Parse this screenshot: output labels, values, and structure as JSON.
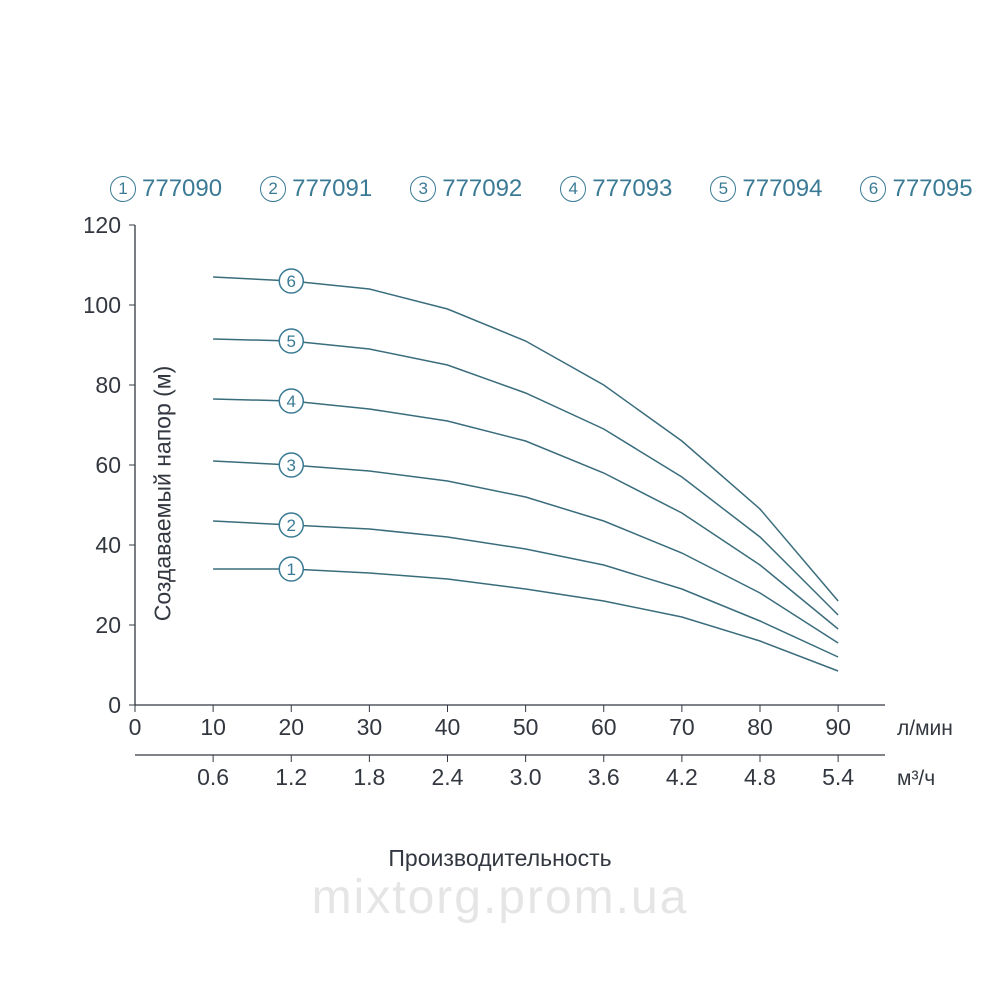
{
  "chart": {
    "type": "line",
    "title": "",
    "ylabel": "Создаваемый напор (м)",
    "xlabel": "Производительность",
    "x_unit_1": "л/мин",
    "x_unit_2": "м³/ч",
    "background_color": "#ffffff",
    "grid_color": "#e0e0e0",
    "axis_color": "#333840",
    "text_color": "#333840",
    "line_color": "#3a6d7c",
    "line_width": 1.5,
    "xlim": [
      0,
      96
    ],
    "ylim": [
      0,
      120
    ],
    "y_ticks": [
      0,
      20,
      40,
      60,
      80,
      100,
      120
    ],
    "x_ticks_1": [
      0,
      10,
      20,
      30,
      40,
      50,
      60,
      70,
      80,
      90
    ],
    "x_ticks_2": [
      "0.6",
      "1.2",
      "1.8",
      "2.4",
      "3.0",
      "3.6",
      "4.2",
      "4.8",
      "5.4"
    ],
    "label_fontsize": 23,
    "tick_fontsize": 23,
    "legend_fontsize": 24,
    "marker_circle_stroke": "#3a7a95",
    "marker_circle_radius": 12,
    "series": [
      {
        "id": "1",
        "label": "777090",
        "marker_x": 20,
        "points": [
          [
            10,
            34
          ],
          [
            20,
            34
          ],
          [
            30,
            33
          ],
          [
            40,
            31.5
          ],
          [
            50,
            29
          ],
          [
            60,
            26
          ],
          [
            70,
            22
          ],
          [
            80,
            16
          ],
          [
            90,
            8.5
          ]
        ]
      },
      {
        "id": "2",
        "label": "777091",
        "marker_x": 20,
        "points": [
          [
            10,
            46
          ],
          [
            20,
            45
          ],
          [
            30,
            44
          ],
          [
            40,
            42
          ],
          [
            50,
            39
          ],
          [
            60,
            35
          ],
          [
            70,
            29
          ],
          [
            80,
            21
          ],
          [
            90,
            12
          ]
        ]
      },
      {
        "id": "3",
        "label": "777092",
        "marker_x": 20,
        "points": [
          [
            10,
            61
          ],
          [
            20,
            60
          ],
          [
            30,
            58.5
          ],
          [
            40,
            56
          ],
          [
            50,
            52
          ],
          [
            60,
            46
          ],
          [
            70,
            38
          ],
          [
            80,
            28
          ],
          [
            90,
            15.5
          ]
        ]
      },
      {
        "id": "4",
        "label": "777093",
        "marker_x": 20,
        "points": [
          [
            10,
            76.5
          ],
          [
            20,
            76
          ],
          [
            30,
            74
          ],
          [
            40,
            71
          ],
          [
            50,
            66
          ],
          [
            60,
            58
          ],
          [
            70,
            48
          ],
          [
            80,
            35
          ],
          [
            90,
            19
          ]
        ]
      },
      {
        "id": "5",
        "label": "777094",
        "marker_x": 20,
        "points": [
          [
            10,
            91.5
          ],
          [
            20,
            91
          ],
          [
            30,
            89
          ],
          [
            40,
            85
          ],
          [
            50,
            78
          ],
          [
            60,
            69
          ],
          [
            70,
            57
          ],
          [
            80,
            42
          ],
          [
            90,
            22.5
          ]
        ]
      },
      {
        "id": "6",
        "label": "777095",
        "marker_x": 20,
        "points": [
          [
            10,
            107
          ],
          [
            20,
            106
          ],
          [
            30,
            104
          ],
          [
            40,
            99
          ],
          [
            50,
            91
          ],
          [
            60,
            80
          ],
          [
            70,
            66
          ],
          [
            80,
            49
          ],
          [
            90,
            26
          ]
        ]
      }
    ]
  },
  "legend_items": [
    {
      "num": "1",
      "label": "777090"
    },
    {
      "num": "2",
      "label": "777091"
    },
    {
      "num": "3",
      "label": "777092"
    },
    {
      "num": "4",
      "label": "777093"
    },
    {
      "num": "5",
      "label": "777094"
    },
    {
      "num": "6",
      "label": "777095"
    }
  ],
  "watermark": "mixtorg.prom.ua"
}
